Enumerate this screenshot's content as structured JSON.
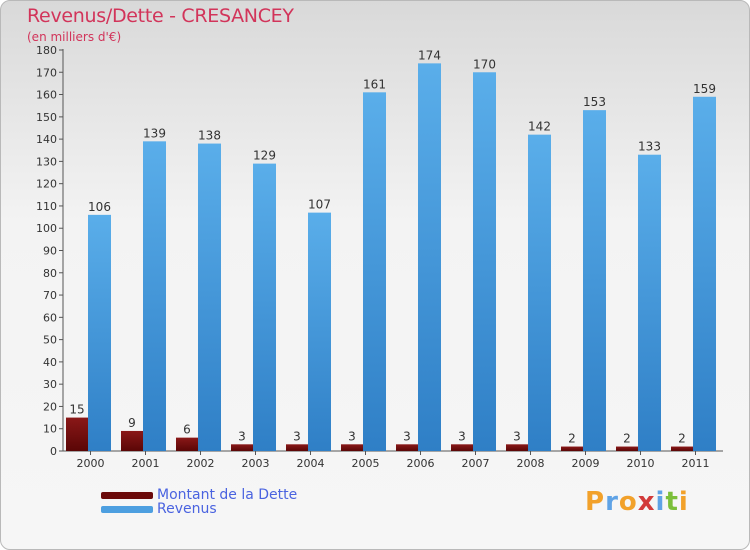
{
  "header": {
    "title": "Revenus/Dette - CRESANCEY",
    "subtitle": "(en milliers d'€)"
  },
  "legend": {
    "items": [
      {
        "label": "Montant de la Dette",
        "color": "#6b0a0a"
      },
      {
        "label": "Revenus",
        "color": "#4d9fe0"
      }
    ]
  },
  "logo": {
    "text": "Proxiti",
    "letters": [
      "P",
      "r",
      "o",
      "x",
      "i",
      "t",
      "i"
    ],
    "colors": [
      "#f2a12a",
      "#5fa3e6",
      "#f2a12a",
      "#d23a3a",
      "#5fa3e6",
      "#7bbf3a",
      "#f2a12a"
    ]
  },
  "chart_data": {
    "type": "bar",
    "title": "Revenus/Dette - CRESANCEY",
    "ylabel": "(en milliers d'€)",
    "xlabel": "",
    "categories": [
      "2000",
      "2001",
      "2002",
      "2003",
      "2004",
      "2005",
      "2006",
      "2007",
      "2008",
      "2009",
      "2010",
      "2011"
    ],
    "series": [
      {
        "name": "Montant de la Dette",
        "color": "#6b0a0a",
        "values": [
          15,
          9,
          6,
          3,
          3,
          3,
          3,
          3,
          3,
          2,
          2,
          2
        ]
      },
      {
        "name": "Revenus",
        "color": "#4d9fe0",
        "values": [
          106,
          139,
          138,
          129,
          107,
          161,
          174,
          170,
          142,
          153,
          133,
          159
        ]
      }
    ],
    "ylim": [
      0,
      180
    ],
    "yticks": [
      "0",
      "10",
      "20",
      "30",
      "40",
      "50",
      "60",
      "70",
      "80",
      "90",
      "100",
      "110",
      "120",
      "130",
      "140",
      "150",
      "160",
      "170",
      "180"
    ],
    "grid": false,
    "legend_position": "bottom-left"
  }
}
